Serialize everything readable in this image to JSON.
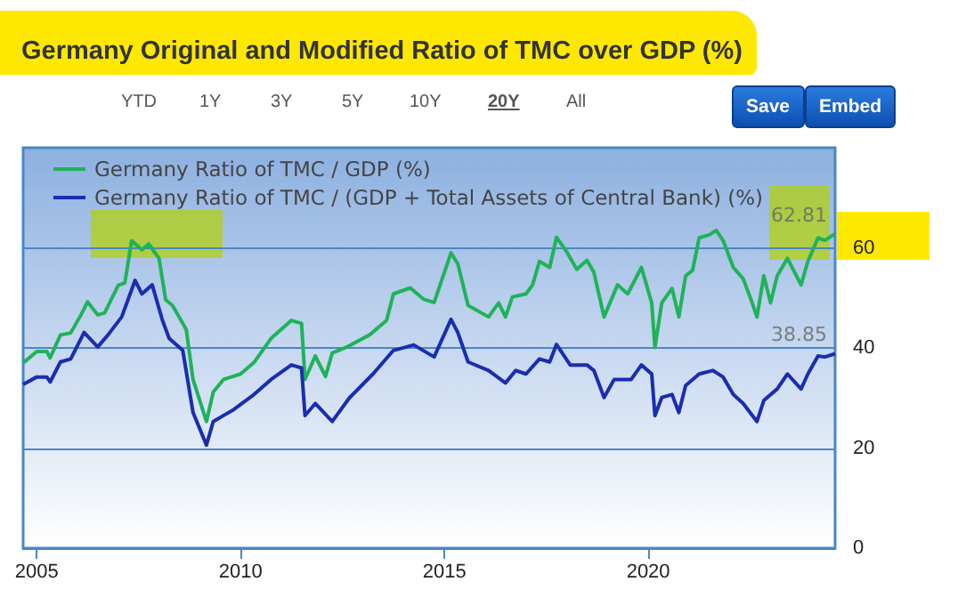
{
  "chart_data": {
    "type": "line",
    "title": "Germany Original and Modified Ratio of TMC over GDP (%)",
    "annotations": [
      "YTD",
      "1Y",
      "3Y",
      "5Y",
      "10Y",
      "20Y",
      "All",
      "Save",
      "Embed",
      {
        "text": "62.81",
        "x": "2024-08",
        "y": 62.81
      },
      {
        "text": "38.85",
        "x": "2024-08",
        "y": 38.85
      }
    ],
    "series": [
      {
        "name": "Germany Ratio of TMC / GDP (%)",
        "color": "#1fb25a",
        "x": [
          "2004-09",
          "2005-01",
          "2005-04",
          "2005-05",
          "2005-08",
          "2005-11",
          "2006-02",
          "2006-04",
          "2006-07",
          "2006-09",
          "2007-01",
          "2007-03",
          "2007-05",
          "2007-08",
          "2007-10",
          "2008-01",
          "2008-03",
          "2008-05",
          "2008-09",
          "2008-11",
          "2009-03",
          "2009-05",
          "2009-08",
          "2010-01",
          "2010-05",
          "2010-10",
          "2011-04",
          "2011-07",
          "2011-08",
          "2011-11",
          "2012-02",
          "2012-04",
          "2012-08",
          "2013-03",
          "2013-08",
          "2013-10",
          "2014-03",
          "2014-07",
          "2014-10",
          "2015-03",
          "2015-05",
          "2015-08",
          "2016-02",
          "2016-05",
          "2016-07",
          "2016-09",
          "2017-01",
          "2017-03",
          "2017-05",
          "2017-08",
          "2017-10",
          "2018-01",
          "2018-04",
          "2018-07",
          "2018-09",
          "2018-12",
          "2019-04",
          "2019-07",
          "2019-11",
          "2020-02",
          "2020-03",
          "2020-05",
          "2020-08",
          "2020-10",
          "2020-12",
          "2021-02",
          "2021-04",
          "2021-07",
          "2021-09",
          "2021-11",
          "2022-02",
          "2022-05",
          "2022-07",
          "2022-09",
          "2022-11",
          "2023-01",
          "2023-03",
          "2023-06",
          "2023-10",
          "2023-12",
          "2024-03",
          "2024-05",
          "2024-08"
        ],
        "values": [
          37,
          39.3,
          39.3,
          38,
          42.6,
          43,
          46.6,
          49.2,
          46.6,
          47,
          52.5,
          53,
          61.4,
          59.6,
          60.8,
          57.9,
          49.6,
          48.5,
          43.7,
          33.7,
          25.3,
          31.2,
          33.7,
          34.8,
          37.1,
          41.9,
          45.5,
          44.9,
          33.7,
          38.4,
          34.3,
          39,
          40.1,
          42.6,
          45.5,
          50.8,
          52,
          49.7,
          49.1,
          59,
          56.8,
          48.5,
          46.2,
          49,
          46.2,
          50.2,
          50.8,
          52.6,
          57.3,
          56.1,
          62.1,
          59.2,
          55.7,
          57.5,
          55.1,
          46.2,
          52.6,
          50.8,
          56.1,
          49,
          40.1,
          49,
          51.9,
          46.2,
          54.4,
          55.5,
          62,
          62.6,
          63.5,
          61.5,
          56.1,
          53.8,
          50.2,
          46.2,
          54.4,
          49,
          54.4,
          57.9,
          52.6,
          57.3,
          62,
          61.5,
          62.81
        ]
      },
      {
        "name": "Germany Ratio of TMC / (GDP + Total Assets of Central Bank) (%)",
        "color": "#1a2db0",
        "x": [
          "2004-09",
          "2005-01",
          "2005-04",
          "2005-05",
          "2005-08",
          "2005-11",
          "2006-03",
          "2006-07",
          "2006-10",
          "2007-02",
          "2007-06",
          "2007-08",
          "2007-11",
          "2008-02",
          "2008-04",
          "2008-08",
          "2008-11",
          "2009-03",
          "2009-05",
          "2009-11",
          "2010-05",
          "2010-10",
          "2011-04",
          "2011-07",
          "2011-08",
          "2011-11",
          "2012-04",
          "2012-09",
          "2013-04",
          "2013-10",
          "2014-04",
          "2014-10",
          "2015-03",
          "2015-05",
          "2015-08",
          "2016-02",
          "2016-07",
          "2016-10",
          "2017-01",
          "2017-05",
          "2017-08",
          "2017-10",
          "2018-02",
          "2018-07",
          "2018-09",
          "2018-12",
          "2019-03",
          "2019-08",
          "2019-11",
          "2020-02",
          "2020-03",
          "2020-05",
          "2020-08",
          "2020-10",
          "2020-12",
          "2021-04",
          "2021-08",
          "2021-11",
          "2022-02",
          "2022-05",
          "2022-09",
          "2022-11",
          "2023-03",
          "2023-06",
          "2023-10",
          "2023-12",
          "2024-03",
          "2024-05",
          "2024-08"
        ],
        "values": [
          32.7,
          34.2,
          34.2,
          33.2,
          37.2,
          37.8,
          43.1,
          40.2,
          42.6,
          46.2,
          53.5,
          50.8,
          52.6,
          45.5,
          41.9,
          39.5,
          27.1,
          20.6,
          25.3,
          27.7,
          30.7,
          33.7,
          36.6,
          36,
          26.5,
          28.9,
          25.3,
          30,
          34.8,
          39.5,
          40.6,
          38.2,
          45.7,
          43.1,
          37.2,
          35.5,
          33,
          35.5,
          34.8,
          37.8,
          37.2,
          40.7,
          36.6,
          36.6,
          35.5,
          30.1,
          33.7,
          33.7,
          36.6,
          34.8,
          26.5,
          30.1,
          30.7,
          27.1,
          32.5,
          34.8,
          35.5,
          34.2,
          30.7,
          28.9,
          25.3,
          29.5,
          31.8,
          34.8,
          31.8,
          34.8,
          38.4,
          38.2,
          38.85
        ]
      }
    ],
    "xlim": [
      "2004-09",
      "2024-08"
    ],
    "xticks": [
      {
        "value": "2005",
        "label": "2005"
      },
      {
        "value": "2010",
        "label": "2010"
      },
      {
        "value": "2015",
        "label": "2015"
      },
      {
        "value": "2020",
        "label": "2020"
      }
    ],
    "ylim": [
      0,
      80
    ],
    "yticks": [
      0,
      20,
      40,
      60
    ],
    "grid": "y",
    "legend": "top left",
    "marker": "none",
    "line_style": "solid"
  }
}
